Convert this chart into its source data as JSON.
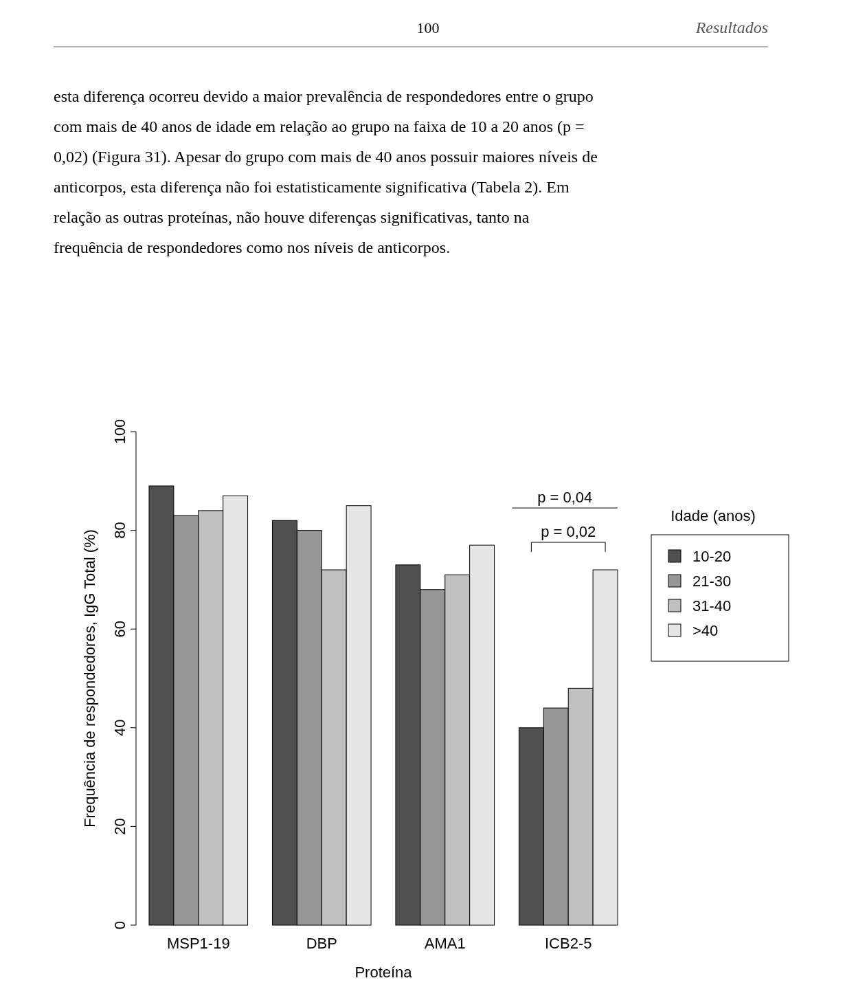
{
  "chart_data": {
    "type": "bar",
    "title": "Resultados",
    "xlabel": "Proteína",
    "ylabel": "Frequência de respondedores, IgG Total (%)",
    "legend_title": "Idade (anos)",
    "legend": "right",
    "categories": [
      "MSP1-19",
      "DBP",
      "AMA1",
      "ICB2-5"
    ],
    "series": [
      {
        "name": "10-20",
        "color": "#505050",
        "values": [
          89,
          82,
          73,
          40
        ]
      },
      {
        "name": "21-30",
        "color": "#969696",
        "values": [
          83,
          80,
          68,
          44
        ]
      },
      {
        "name": "31-40",
        "color": "#c0c0c0",
        "values": [
          84,
          72,
          71,
          48
        ]
      },
      {
        "name": ">40",
        "color": "#e6e6e6",
        "values": [
          87,
          85,
          77,
          72
        ]
      }
    ],
    "ylim": [
      0,
      100
    ],
    "yticks": [
      0,
      20,
      40,
      60,
      80,
      100
    ],
    "annotations": [
      "100",
      "esta diferença ocorreu devido a maior prevalência de respondedores entre o grupo com mais de 40 anos de idade em relação ao grupo na faixa de 10 a 20 anos (p = 0,02) (Figura 31). Apesar do grupo com mais de 40 anos possuir maiores níveis de anticorpos, esta diferença não foi estatisticamente significativa (Tabela 2). Em relação as outras proteínas, não houve diferenças significativas, tanto na frequência de respondedores como nos níveis de anticorpos.",
      "p = 0,04",
      "p = 0,02"
    ]
  }
}
